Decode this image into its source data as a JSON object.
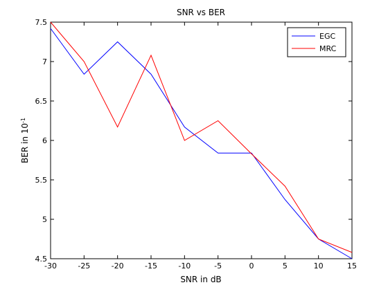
{
  "chart_data": {
    "type": "line",
    "title": "SNR vs BER",
    "xlabel": "SNR in dB",
    "ylabel": "BER in 10^-1",
    "xlim": [
      -30,
      15
    ],
    "ylim": [
      4.5,
      7.5
    ],
    "xticks": [
      "-30",
      "-25",
      "-20",
      "-15",
      "-10",
      "-5",
      "0",
      "5",
      "10",
      "15"
    ],
    "yticks": [
      "4.5",
      "5",
      "5.5",
      "6",
      "6.5",
      "7",
      "7.5"
    ],
    "grid": false,
    "legend_position": "top-right",
    "x": [
      -30,
      -25,
      -20,
      -15,
      -10,
      -5,
      0,
      5,
      10,
      15
    ],
    "series": [
      {
        "name": "EGC",
        "color": "#0000ff",
        "values": [
          7.42,
          6.84,
          7.25,
          6.84,
          6.17,
          5.84,
          5.84,
          5.25,
          4.75,
          4.5
        ]
      },
      {
        "name": "MRC",
        "color": "#ff0000",
        "values": [
          7.5,
          7.0,
          6.17,
          7.08,
          6.0,
          6.25,
          5.83,
          5.42,
          4.75,
          4.58
        ]
      }
    ]
  }
}
